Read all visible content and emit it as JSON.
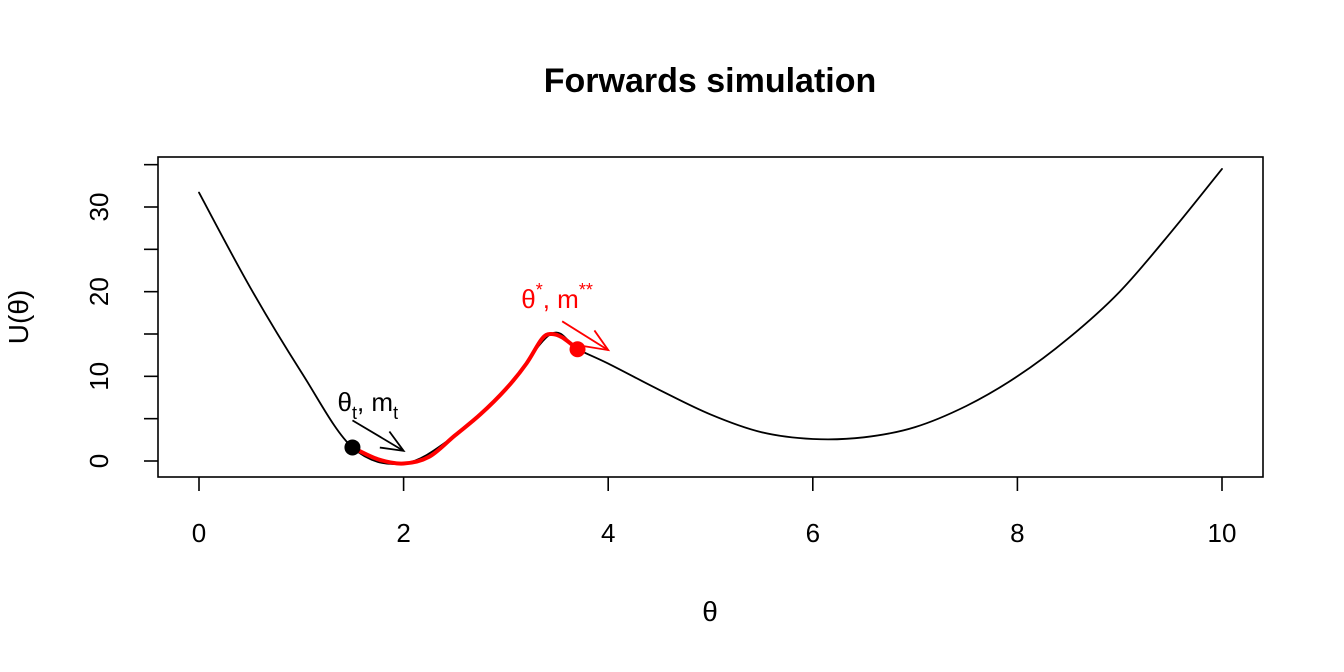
{
  "chart_data": {
    "type": "line",
    "title": "Forwards simulation",
    "xlabel": "θ",
    "ylabel": "U(θ)",
    "xlim": [
      0,
      10
    ],
    "ylim": [
      0,
      35
    ],
    "x_ticks": [
      0,
      2,
      4,
      6,
      8,
      10
    ],
    "x_tick_labels": [
      "0",
      "2",
      "4",
      "6",
      "8",
      "10"
    ],
    "y_ticks": [
      0,
      10,
      20,
      30
    ],
    "y_tick_labels": [
      "0",
      "10",
      "20",
      "30"
    ],
    "y_minor_ticks": [
      5,
      15,
      25,
      35
    ],
    "grid": false,
    "series": [
      {
        "color": "#000000",
        "points": [
          [
            0.0,
            31.7
          ],
          [
            0.5,
            20.5
          ],
          [
            1.0,
            10.5
          ],
          [
            1.5,
            1.6
          ],
          [
            2.0,
            -0.3
          ],
          [
            2.5,
            3.0
          ],
          [
            3.0,
            8.5
          ],
          [
            3.44,
            15.0
          ],
          [
            3.7,
            13.2
          ],
          [
            4.0,
            11.5
          ],
          [
            4.5,
            8.4
          ],
          [
            5.0,
            5.5
          ],
          [
            5.5,
            3.4
          ],
          [
            6.0,
            2.6
          ],
          [
            6.5,
            2.8
          ],
          [
            7.0,
            4.0
          ],
          [
            7.5,
            6.5
          ],
          [
            8.0,
            10.0
          ],
          [
            8.5,
            14.5
          ],
          [
            9.0,
            20.0
          ],
          [
            9.5,
            27.0
          ],
          [
            10.0,
            34.5
          ]
        ]
      },
      {
        "color": "#ff0000",
        "points": [
          [
            1.5,
            1.6
          ],
          [
            1.75,
            0.2
          ],
          [
            2.0,
            -0.3
          ],
          [
            2.25,
            0.5
          ],
          [
            2.5,
            3.0
          ],
          [
            2.75,
            5.5
          ],
          [
            3.0,
            8.5
          ],
          [
            3.2,
            11.5
          ],
          [
            3.35,
            14.4
          ],
          [
            3.44,
            15.0
          ],
          [
            3.55,
            14.6
          ],
          [
            3.7,
            13.2
          ]
        ]
      }
    ],
    "points": [
      {
        "name": "theta-t",
        "x": 1.5,
        "y": 1.6,
        "color": "#000000"
      },
      {
        "name": "theta-star",
        "x": 3.7,
        "y": 13.2,
        "color": "#ff0000"
      }
    ],
    "arrows": [
      {
        "from": [
          1.5,
          4.8
        ],
        "to": [
          2.0,
          1.2
        ],
        "color": "#000000"
      },
      {
        "from": [
          3.55,
          16.5
        ],
        "to": [
          4.0,
          13.1
        ],
        "color": "#ff0000"
      }
    ],
    "annotations": [
      {
        "base": "θ",
        "sub": "t",
        "mid": ", m",
        "sub2": "t",
        "x": 1.65,
        "y": 5.9,
        "color": "#000000"
      },
      {
        "base": "θ",
        "sup": "*",
        "mid": ", m",
        "sup2": "**",
        "x": 3.5,
        "y": 18.1,
        "color": "#ff0000"
      }
    ]
  }
}
